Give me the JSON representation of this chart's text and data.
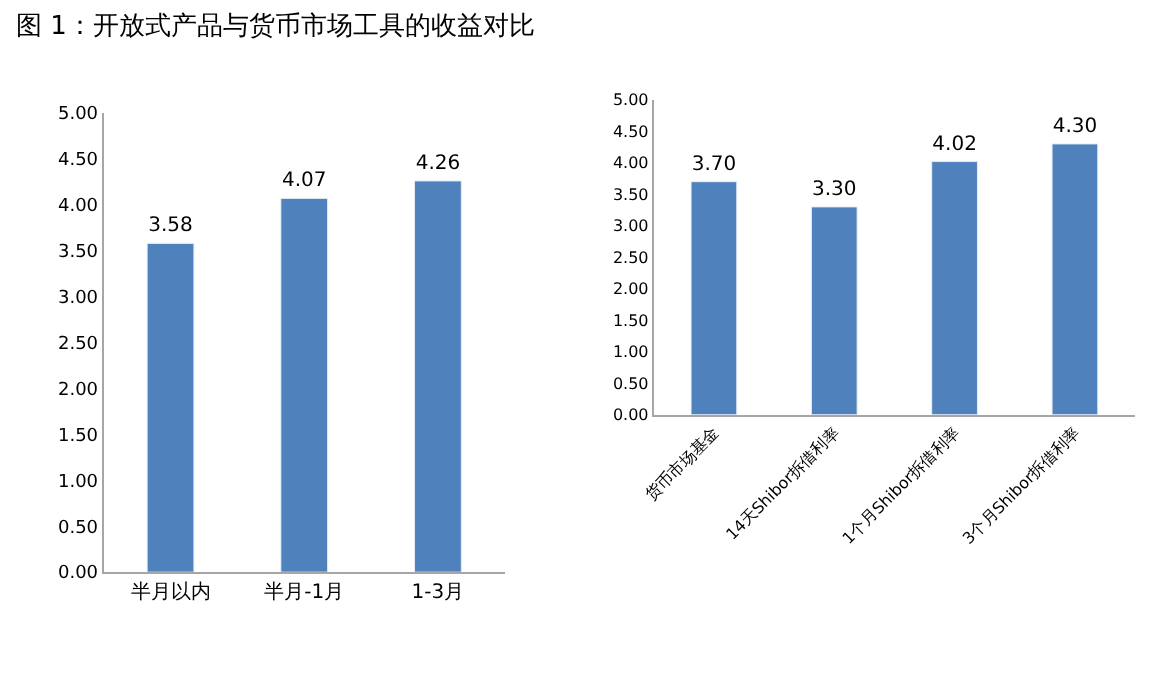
{
  "chart_data": [
    {
      "type": "bar",
      "title": "图 1：开放式产品与货币市场工具的收益对比",
      "categories": [
        "半月以内",
        "半月-1月",
        "1-3月"
      ],
      "series": [
        {
          "color": "#4f81bd",
          "values": [
            3.58,
            4.07,
            4.26
          ],
          "value_labels": [
            "3.58",
            "4.07",
            "4.26"
          ]
        }
      ],
      "legend": false,
      "ylim": [
        0,
        5
      ],
      "yticks": [
        {
          "value": 0,
          "label": "0.00"
        },
        {
          "value": 0.5,
          "label": "0.50"
        },
        {
          "value": 1,
          "label": "1.00"
        },
        {
          "value": 1.5,
          "label": "1.50"
        },
        {
          "value": 2,
          "label": "2.00"
        },
        {
          "value": 2.5,
          "label": "2.50"
        },
        {
          "value": 3,
          "label": "3.00"
        },
        {
          "value": 3.5,
          "label": "3.50"
        },
        {
          "value": 4,
          "label": "4.00"
        },
        {
          "value": 4.5,
          "label": "4.50"
        },
        {
          "value": 5,
          "label": "5.00"
        }
      ]
    },
    {
      "type": "bar",
      "categories": [
        "货币市场基金",
        "14天Shibor拆借利率",
        "1个月Shibor拆借利率",
        "3个月Shibor拆借利率"
      ],
      "series": [
        {
          "color": "#4f81bd",
          "values": [
            3.7,
            3.3,
            4.02,
            4.3
          ],
          "value_labels": [
            "3.70",
            "3.30",
            "4.02",
            "4.30"
          ]
        }
      ],
      "legend": false,
      "ylim": [
        0,
        5
      ],
      "yticks": [
        {
          "value": 0,
          "label": "0.00"
        },
        {
          "value": 0.5,
          "label": "0.50"
        },
        {
          "value": 1,
          "label": "1.00"
        },
        {
          "value": 1.5,
          "label": "1.50"
        },
        {
          "value": 2,
          "label": "2.00"
        },
        {
          "value": 2.5,
          "label": "2.50"
        },
        {
          "value": 3,
          "label": "3.00"
        },
        {
          "value": 3.5,
          "label": "3.50"
        },
        {
          "value": 4,
          "label": "4.00"
        },
        {
          "value": 4.5,
          "label": "4.50"
        },
        {
          "value": 5,
          "label": "5.00"
        }
      ]
    }
  ]
}
